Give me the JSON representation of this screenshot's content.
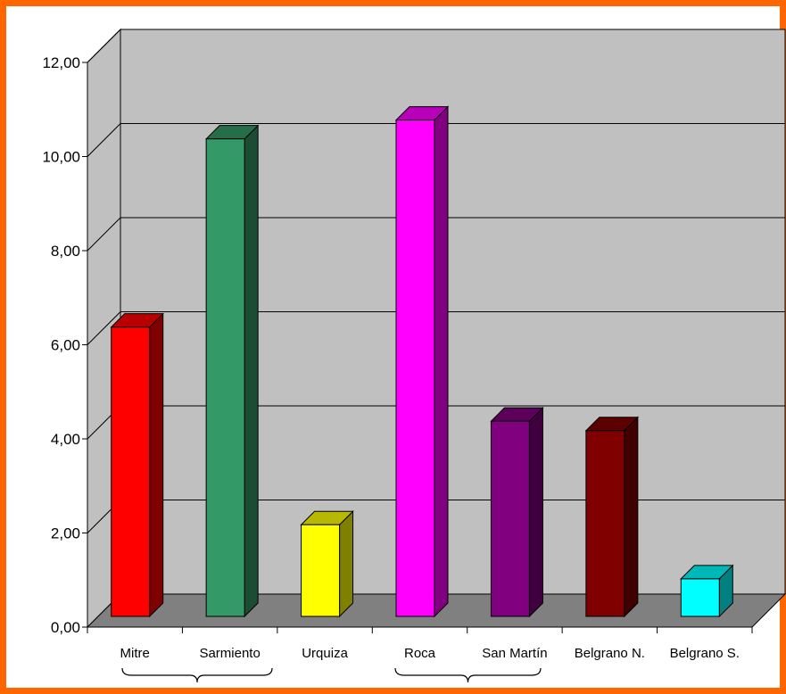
{
  "chart_data": {
    "type": "bar",
    "style": "3d-column",
    "categories": [
      "Mitre",
      "Sarmiento",
      "Urquiza",
      "Roca",
      "San Martín",
      "Belgrano N.",
      "Belgrano S."
    ],
    "values": [
      6.3,
      10.3,
      2.1,
      10.7,
      4.3,
      4.1,
      0.95
    ],
    "colors": [
      "#ff0000",
      "#339966",
      "#ffff00",
      "#ff00ff",
      "#800080",
      "#800000",
      "#00ffff"
    ],
    "yticks": [
      "0,00",
      "2,00",
      "4,00",
      "6,00",
      "8,00",
      "10,00",
      "12,00"
    ],
    "ylim": [
      0,
      12
    ],
    "grid": true,
    "wall_color": "#c0c0c0",
    "floor_color": "#808080",
    "frame_color": "#ff6600",
    "title": "",
    "xlabel": "",
    "ylabel": ""
  }
}
